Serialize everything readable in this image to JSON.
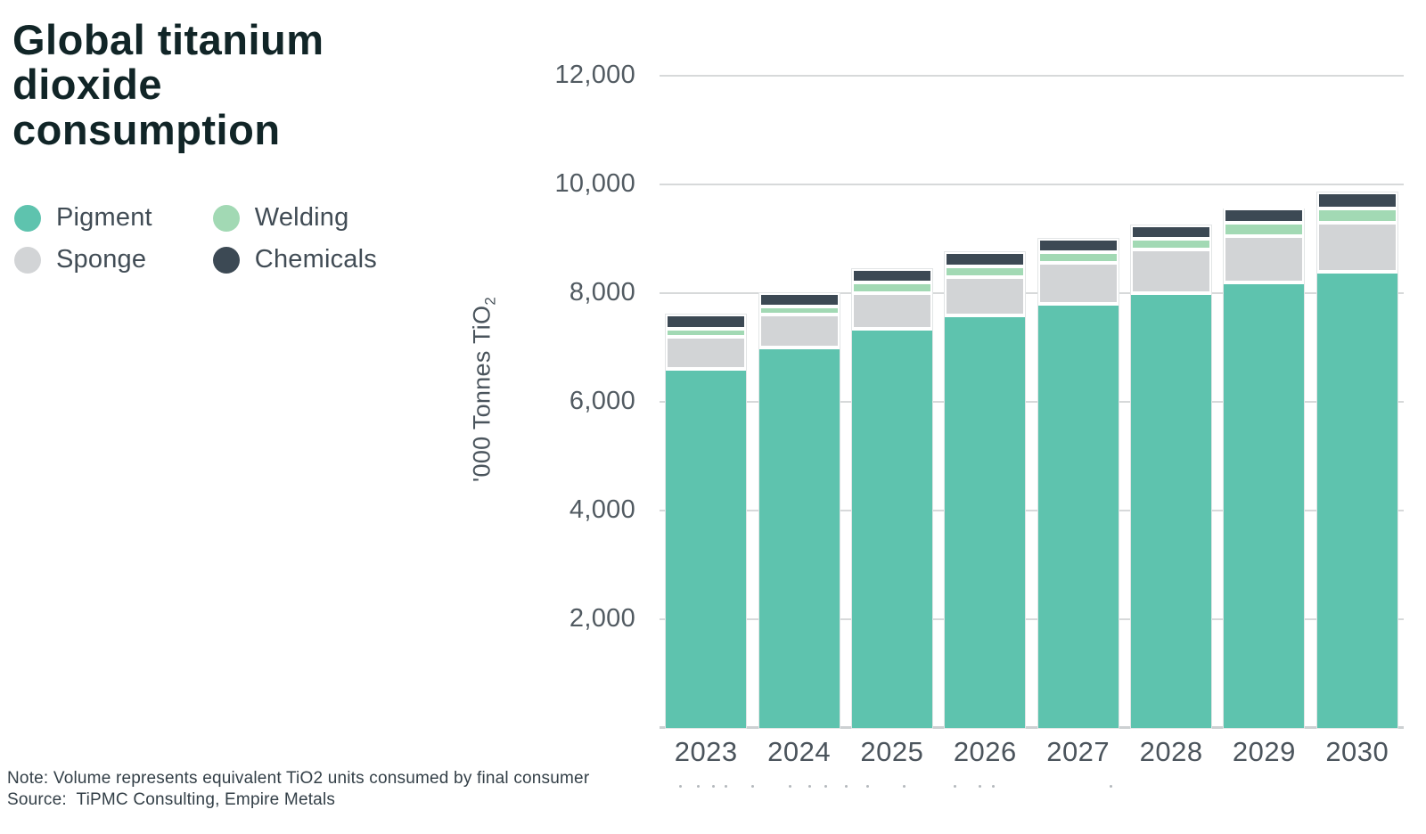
{
  "header": {
    "title": "Global titanium dioxide consumption"
  },
  "legend": {
    "items": [
      {
        "label": "Pigment",
        "color": "#5ec3ae"
      },
      {
        "label": "Sponge",
        "color": "#d2d4d6"
      },
      {
        "label": "Welding",
        "color": "#a2d9b4"
      },
      {
        "label": "Chemicals",
        "color": "#3c4954"
      }
    ]
  },
  "chart_data": {
    "type": "bar",
    "stacked": true,
    "title": "Global titanium dioxide consumption",
    "categories": [
      "2023",
      "2024",
      "2025",
      "2026",
      "2027",
      "2028",
      "2029",
      "2030"
    ],
    "series": [
      {
        "name": "Pigment",
        "color": "#5ec3ae",
        "values": [
          6600,
          7000,
          7350,
          7600,
          7800,
          8000,
          8200,
          8400
        ]
      },
      {
        "name": "Sponge",
        "color": "#d2d4d6",
        "values": [
          600,
          600,
          650,
          700,
          750,
          800,
          850,
          900
        ]
      },
      {
        "name": "Welding",
        "color": "#a2d9b4",
        "values": [
          150,
          150,
          200,
          200,
          200,
          200,
          250,
          250
        ]
      },
      {
        "name": "Chemicals",
        "color": "#3c4954",
        "values": [
          250,
          250,
          250,
          250,
          250,
          250,
          250,
          300
        ]
      }
    ],
    "xlabel": "",
    "ylabel": "'000 Tonnes TiO2",
    "ylabel_main": "'000 Tonnes TiO",
    "ylabel_sub": "2",
    "ylim": [
      0,
      12400
    ],
    "yticks": [
      2000,
      4000,
      6000,
      8000,
      10000,
      12000
    ],
    "ytick_labels": [
      "2,000",
      "4,000",
      "6,000",
      "8,000",
      "10,000",
      "12,000"
    ],
    "grid": true,
    "legend_position": "top-left"
  },
  "footer": {
    "note": "Note: Volume represents equivalent TiO2 units consumed by final consumer",
    "source": "Source:  TiPMC Consulting, Empire Metals"
  }
}
